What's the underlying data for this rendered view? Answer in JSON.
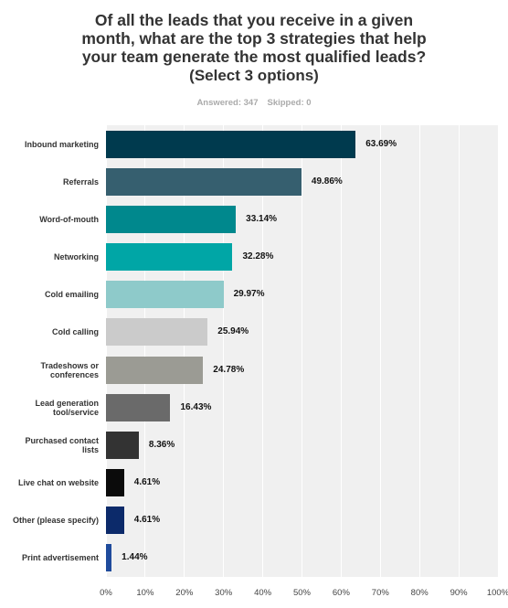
{
  "title": "Of all the leads that you receive in a given month, what are the top 3 strategies that help your team generate the most qualified leads?",
  "subtitle": "(Select 3 options)",
  "answered": "Answered: 347",
  "skipped": "Skipped: 0",
  "chart_data": {
    "type": "hbar",
    "categories": [
      "Inbound marketing",
      "Referrals",
      "Word-of-mouth",
      "Networking",
      "Cold emailing",
      "Cold calling",
      "Tradeshows or conferences",
      "Lead generation tool/service",
      "Purchased contact lists",
      "Live chat on website",
      "Other (please specify)",
      "Print advertisement"
    ],
    "values": [
      63.69,
      49.86,
      33.14,
      32.28,
      29.97,
      25.94,
      24.78,
      16.43,
      8.36,
      4.61,
      4.61,
      1.44
    ],
    "value_labels": [
      "63.69%",
      "49.86%",
      "33.14%",
      "32.28%",
      "29.97%",
      "25.94%",
      "24.78%",
      "16.43%",
      "8.36%",
      "4.61%",
      "4.61%",
      "1.44%"
    ],
    "colors": [
      "#003a4e",
      "#365f6f",
      "#00888d",
      "#00a6a6",
      "#8ecaca",
      "#cbcbcb",
      "#9b9b94",
      "#6a6a6a",
      "#333333",
      "#0b0b0b",
      "#0c2a6a",
      "#1f4b9c"
    ],
    "xlim": [
      0,
      100
    ],
    "xticks": [
      {
        "value": 0,
        "label": "0%"
      },
      {
        "value": 10,
        "label": "10%"
      },
      {
        "value": 20,
        "label": "20%"
      },
      {
        "value": 30,
        "label": "30%"
      },
      {
        "value": 40,
        "label": "40%"
      },
      {
        "value": 50,
        "label": "50%"
      },
      {
        "value": 60,
        "label": "60%"
      },
      {
        "value": 70,
        "label": "70%"
      },
      {
        "value": 80,
        "label": "80%"
      },
      {
        "value": 90,
        "label": "90%"
      },
      {
        "value": 100,
        "label": "100%"
      }
    ],
    "grid": true
  }
}
